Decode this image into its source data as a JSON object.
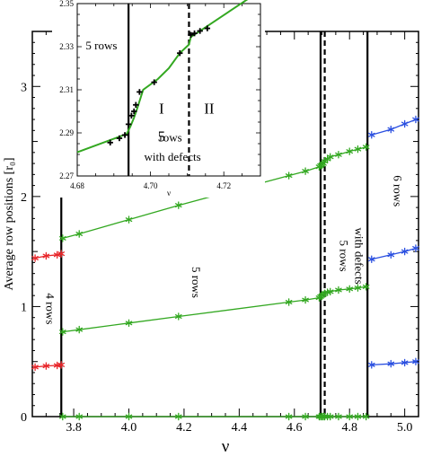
{
  "chart_data": [
    {
      "type": "scatter",
      "title": "",
      "xlabel": "ν",
      "ylabel": "Average row positions [r₀]",
      "xlim": [
        3.65,
        5.05
      ],
      "ylim": [
        0,
        3.5
      ],
      "xticks": [
        "3.8",
        "4.0",
        "4.2",
        "4.4",
        "4.6",
        "4.8",
        "5.0"
      ],
      "yticks": [
        "0",
        "1",
        "2",
        "3"
      ],
      "grid": false,
      "legend": "none",
      "colors": {
        "red": "#e8262a",
        "green": "#33a821",
        "blue": "#2a4fe0"
      },
      "series": [
        {
          "color": "red",
          "x": [
            3.66,
            3.7,
            3.74,
            3.755
          ],
          "y": [
            0.45,
            0.46,
            0.465,
            0.47
          ]
        },
        {
          "color": "red",
          "x": [
            3.66,
            3.7,
            3.74,
            3.755
          ],
          "y": [
            1.44,
            1.46,
            1.47,
            1.48
          ]
        },
        {
          "color": "green",
          "x": [
            3.76,
            3.82,
            4.0,
            4.18,
            4.58,
            4.64,
            4.69,
            4.695,
            4.7,
            4.705,
            4.71,
            4.72,
            4.73,
            4.76,
            4.8,
            4.83,
            4.86
          ],
          "y": [
            0.0,
            0.0,
            0.0,
            0.0,
            0.0,
            0.0,
            0.0,
            0.0,
            0.0,
            0.0,
            0.0,
            0.0,
            0.0,
            0.0,
            0.0,
            0.0,
            0.0
          ]
        },
        {
          "color": "green",
          "x": [
            3.76,
            3.82,
            4.0,
            4.18,
            4.58,
            4.64,
            4.69,
            4.695,
            4.7,
            4.705,
            4.71,
            4.72,
            4.73,
            4.76,
            4.8,
            4.83,
            4.86
          ],
          "y": [
            0.77,
            0.79,
            0.85,
            0.91,
            1.04,
            1.06,
            1.08,
            1.09,
            1.1,
            1.11,
            1.12,
            1.13,
            1.135,
            1.15,
            1.16,
            1.17,
            1.18
          ]
        },
        {
          "color": "green",
          "x": [
            3.76,
            3.82,
            4.0,
            4.18,
            4.58,
            4.64,
            4.69,
            4.695,
            4.7,
            4.705,
            4.71,
            4.72,
            4.73,
            4.76,
            4.8,
            4.83,
            4.86
          ],
          "y": [
            1.62,
            1.66,
            1.79,
            1.92,
            2.19,
            2.23,
            2.27,
            2.28,
            2.29,
            2.3,
            2.32,
            2.34,
            2.36,
            2.38,
            2.41,
            2.43,
            2.45
          ]
        },
        {
          "color": "blue",
          "x": [
            4.88,
            4.95,
            5.0,
            5.04
          ],
          "y": [
            0.47,
            0.48,
            0.49,
            0.5
          ]
        },
        {
          "color": "blue",
          "x": [
            4.88,
            4.95,
            5.0,
            5.04
          ],
          "y": [
            1.43,
            1.47,
            1.5,
            1.53
          ]
        },
        {
          "color": "blue",
          "x": [
            4.88,
            4.95,
            5.0,
            5.04
          ],
          "y": [
            2.56,
            2.61,
            2.66,
            2.7
          ]
        }
      ],
      "boundaries": [
        {
          "x": 3.755,
          "style": "solid"
        },
        {
          "x": 4.695,
          "style": "solid"
        },
        {
          "x": 4.71,
          "style": "dashed"
        },
        {
          "x": 4.865,
          "style": "solid"
        }
      ],
      "annotations": [
        {
          "text": "4 rows",
          "x": 3.7,
          "y": 0.98,
          "rotate": 90
        },
        {
          "text": "5 rows",
          "x": 4.23,
          "y": 1.22,
          "rotate": 90
        },
        {
          "text": "5 rows",
          "x": 4.765,
          "y": 1.46,
          "rotate": 90
        },
        {
          "text": "with defects",
          "x": 4.82,
          "y": 1.46,
          "rotate": 90
        },
        {
          "text": "6 rows",
          "x": 4.96,
          "y": 2.05,
          "rotate": 90
        }
      ]
    },
    {
      "type": "line",
      "title": "",
      "xlabel": "ν",
      "ylabel": "",
      "xlim": [
        4.68,
        4.73
      ],
      "ylim": [
        2.27,
        2.35
      ],
      "xticks": [
        "4.68",
        "4.70",
        "4.72"
      ],
      "yticks": [
        "2.27",
        "2.29",
        "2.31",
        "2.33",
        "2.35"
      ],
      "grid": false,
      "legend": "none",
      "line_color": "green",
      "line": {
        "x": [
          4.68,
          4.6935,
          4.6945,
          4.6955,
          4.6965,
          4.698,
          4.702,
          4.705,
          4.708,
          4.7105,
          4.711,
          4.715,
          4.73
        ],
        "y": [
          2.281,
          2.2895,
          2.293,
          2.297,
          2.302,
          2.31,
          2.315,
          2.32,
          2.327,
          2.331,
          2.3345,
          2.339,
          2.356
        ]
      },
      "points": {
        "x": [
          4.689,
          4.6915,
          4.693,
          4.694,
          4.6948,
          4.6955,
          4.696,
          4.697,
          4.701,
          4.708,
          4.711,
          4.712,
          4.7135,
          4.7155
        ],
        "y": [
          2.2855,
          2.2875,
          2.289,
          2.294,
          2.298,
          2.3,
          2.303,
          2.309,
          2.3135,
          2.327,
          2.3355,
          2.3362,
          2.3373,
          2.3385
        ]
      },
      "boundaries": [
        {
          "x": 4.694,
          "style": "solid"
        },
        {
          "x": 4.7105,
          "style": "dashed"
        }
      ],
      "annotations": [
        {
          "text": "5 rows",
          "x": 4.6823,
          "y": 2.3287
        },
        {
          "text": "I",
          "x": 4.703,
          "y": 2.299
        },
        {
          "text": "II",
          "x": 4.716,
          "y": 2.299
        },
        {
          "text": "5",
          "x": 4.703,
          "y": 2.286
        },
        {
          "text": "rows",
          "x": 4.7055,
          "y": 2.286
        },
        {
          "text": "with defects",
          "x": 4.706,
          "y": 2.277
        }
      ]
    }
  ]
}
